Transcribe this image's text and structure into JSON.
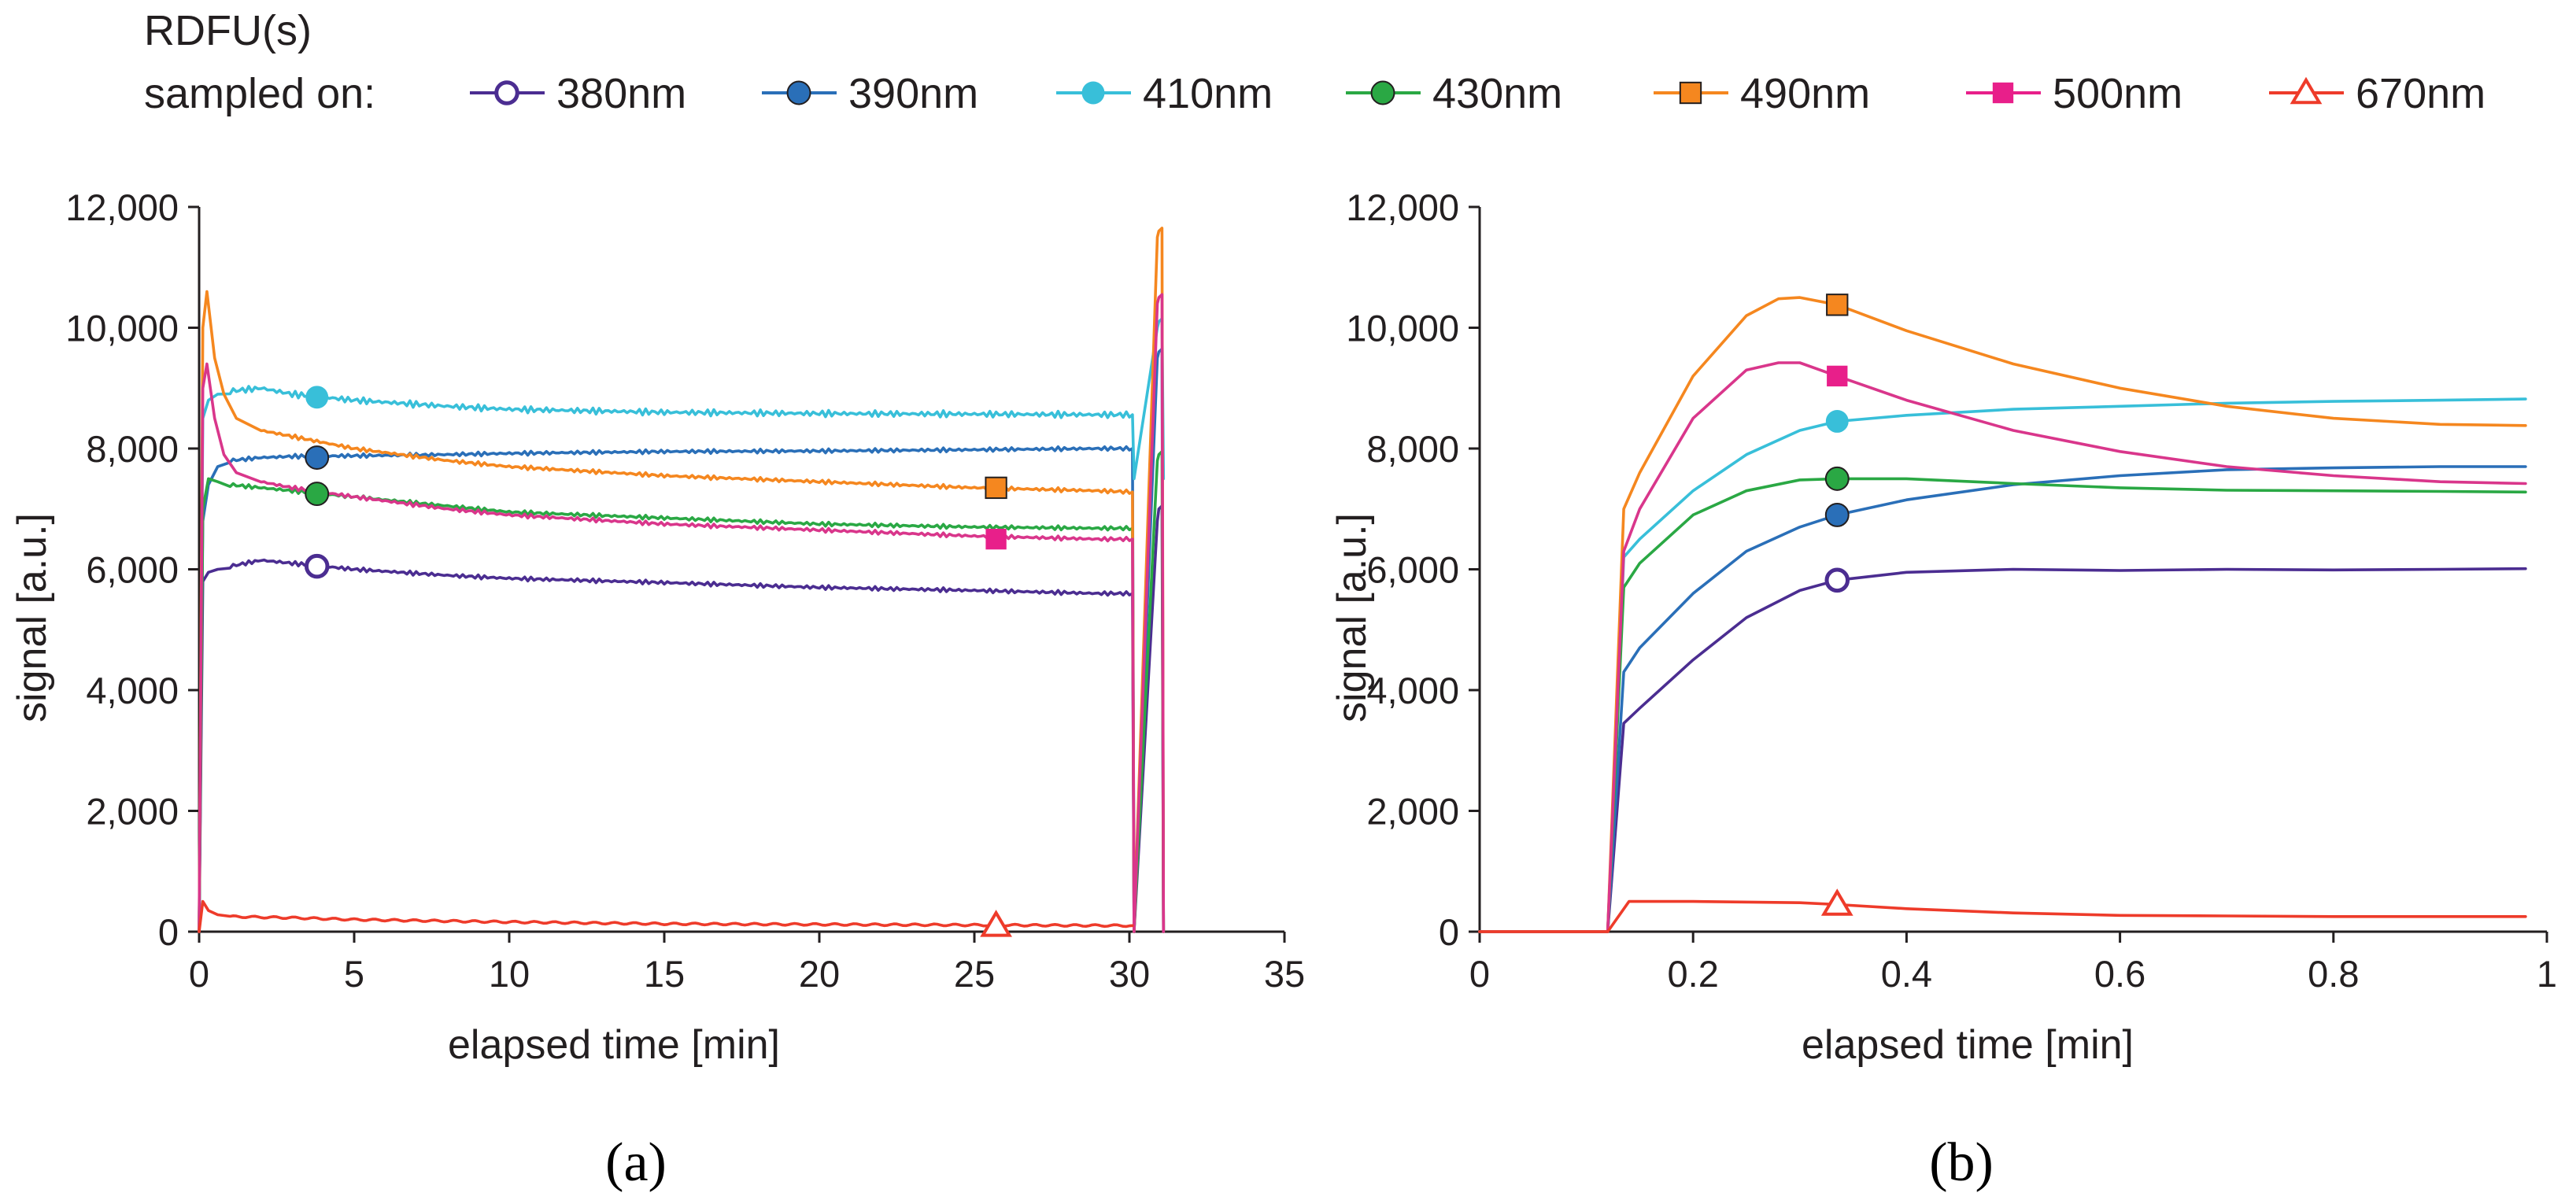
{
  "colors": {
    "380nm": "#4b2d91",
    "390nm": "#2a6fb8",
    "410nm": "#38bfd9",
    "430nm": "#2aa844",
    "490nm": "#f5871f",
    "500nm": "#d9368b",
    "670nm": "#ee3b2a"
  },
  "legend": {
    "title": "RDFU(s)",
    "prefix": "sampled on:",
    "entries": [
      {
        "label": "380nm",
        "color": "#4b2d91",
        "marker": "circle-open"
      },
      {
        "label": "390nm",
        "color": "#2a6fb8",
        "marker": "circle-filled"
      },
      {
        "label": "410nm",
        "color": "#38bfd9",
        "marker": "circle-filled"
      },
      {
        "label": "430nm",
        "color": "#2aa844",
        "marker": "circle-filled"
      },
      {
        "label": "490nm",
        "color": "#f5871f",
        "marker": "square-filled"
      },
      {
        "label": "500nm",
        "color": "#e81f8a",
        "marker": "square-filled"
      },
      {
        "label": "670nm",
        "color": "#ee3b2a",
        "marker": "triangle-open"
      }
    ]
  },
  "chart_data": [
    {
      "type": "line",
      "panel_label": "(a)",
      "xlabel": "elapsed time [min]",
      "ylabel": "signal [a.u.]",
      "xlim": [
        0,
        35
      ],
      "ylim": [
        0,
        12000
      ],
      "xticks": [
        0,
        5,
        10,
        15,
        20,
        25,
        30,
        35
      ],
      "xtick_labels": [
        "0",
        "5",
        "10",
        "15",
        "20",
        "25",
        "30",
        "35"
      ],
      "yticks": [
        0,
        2000,
        4000,
        6000,
        8000,
        10000,
        12000
      ],
      "ytick_labels": [
        "0",
        "2,000",
        "4,000",
        "6,000",
        "8,000",
        "10,000",
        "12,000"
      ],
      "series": [
        {
          "name": "380nm",
          "marker_x": 3.8,
          "marker_y": 6050,
          "x": [
            0,
            0.12,
            0.3,
            0.6,
            1,
            2,
            3,
            5,
            8,
            10,
            15,
            20,
            25,
            29,
            30.1,
            30.15,
            30.9,
            30.95,
            31.05,
            31.1
          ],
          "y": [
            0,
            5800,
            5950,
            6000,
            6050,
            6150,
            6100,
            6000,
            5900,
            5850,
            5780,
            5700,
            5650,
            5600,
            5600,
            0,
            6800,
            7000,
            7050,
            0
          ]
        },
        {
          "name": "390nm",
          "marker_x": 3.8,
          "marker_y": 7850,
          "x": [
            0,
            0.12,
            0.3,
            0.6,
            1,
            2,
            3,
            5,
            8,
            10,
            15,
            20,
            25,
            29,
            30.1,
            30.15,
            30.9,
            30.95,
            31.05,
            31.1
          ],
          "y": [
            0,
            6800,
            7400,
            7700,
            7800,
            7850,
            7870,
            7880,
            7900,
            7920,
            7950,
            7960,
            7980,
            8000,
            8000,
            0,
            9500,
            9600,
            9650,
            0
          ]
        },
        {
          "name": "410nm",
          "marker_x": 3.8,
          "marker_y": 8850,
          "x": [
            0,
            0.12,
            0.3,
            0.6,
            1,
            2,
            3,
            5,
            8,
            10,
            15,
            20,
            25,
            29,
            30.1,
            30.15,
            30.9,
            30.95,
            31.05,
            31.1
          ],
          "y": [
            0,
            8500,
            8800,
            8900,
            8950,
            9000,
            8900,
            8800,
            8700,
            8650,
            8600,
            8580,
            8570,
            8560,
            8560,
            7500,
            10000,
            10100,
            10150,
            7500
          ]
        },
        {
          "name": "430nm",
          "marker_x": 3.8,
          "marker_y": 7250,
          "x": [
            0,
            0.12,
            0.3,
            0.6,
            1,
            2,
            3,
            5,
            8,
            10,
            15,
            20,
            25,
            29,
            30.1,
            30.15,
            30.9,
            30.95,
            31.05,
            31.1
          ],
          "y": [
            0,
            7000,
            7500,
            7450,
            7400,
            7350,
            7300,
            7200,
            7050,
            6950,
            6850,
            6750,
            6700,
            6680,
            6680,
            0,
            7800,
            7900,
            7950,
            0
          ]
        },
        {
          "name": "490nm",
          "marker_x": 25.7,
          "marker_y": 7350,
          "x": [
            0,
            0.12,
            0.25,
            0.5,
            0.8,
            1.2,
            2,
            3,
            5,
            8,
            10,
            15,
            20,
            25,
            29,
            30.1,
            30.15,
            30.9,
            30.95,
            31.05,
            31.1
          ],
          "y": [
            0,
            10000,
            10600,
            9500,
            8900,
            8500,
            8300,
            8200,
            8000,
            7800,
            7700,
            7550,
            7450,
            7350,
            7300,
            7280,
            0,
            11500,
            11600,
            11650,
            0
          ]
        },
        {
          "name": "500nm",
          "marker_x": 25.7,
          "marker_y": 6500,
          "x": [
            0,
            0.12,
            0.25,
            0.5,
            0.8,
            1.2,
            2,
            3,
            5,
            8,
            10,
            15,
            20,
            25,
            29,
            30.1,
            30.15,
            30.9,
            30.95,
            31.05,
            31.1
          ],
          "y": [
            0,
            9000,
            9400,
            8500,
            7900,
            7600,
            7450,
            7350,
            7200,
            7000,
            6900,
            6750,
            6650,
            6550,
            6500,
            6500,
            0,
            10400,
            10500,
            10550,
            0
          ]
        },
        {
          "name": "670nm",
          "marker_x": 25.7,
          "marker_y": 100,
          "x": [
            0,
            0.12,
            0.3,
            0.6,
            1,
            3,
            5,
            10,
            15,
            20,
            25,
            30.1
          ],
          "y": [
            0,
            500,
            350,
            280,
            250,
            230,
            200,
            160,
            130,
            120,
            110,
            100
          ]
        }
      ]
    },
    {
      "type": "line",
      "panel_label": "(b)",
      "xlabel": "elapsed time [min]",
      "ylabel": "signal [a.u.]",
      "xlim": [
        0,
        1
      ],
      "ylim": [
        0,
        12000
      ],
      "xticks": [
        0,
        0.2,
        0.4,
        0.6,
        0.8,
        1
      ],
      "xtick_labels": [
        "0",
        "0.2",
        "0.4",
        "0.6",
        "0.8",
        "1"
      ],
      "yticks": [
        0,
        2000,
        4000,
        6000,
        8000,
        10000,
        12000
      ],
      "ytick_labels": [
        "0",
        "2,000",
        "4,000",
        "6,000",
        "8,000",
        "10,000",
        "12,000"
      ],
      "series": [
        {
          "name": "380nm",
          "marker_x": 0.335,
          "marker_y": 5820,
          "x": [
            0,
            0.12,
            0.135,
            0.15,
            0.2,
            0.25,
            0.3,
            0.335,
            0.4,
            0.5,
            0.6,
            0.7,
            0.8,
            0.9,
            0.98
          ],
          "y": [
            0,
            0,
            3450,
            3700,
            4500,
            5200,
            5650,
            5820,
            5950,
            6000,
            5980,
            6000,
            5990,
            6000,
            6010
          ]
        },
        {
          "name": "390nm",
          "marker_x": 0.335,
          "marker_y": 6900,
          "x": [
            0,
            0.12,
            0.135,
            0.15,
            0.2,
            0.25,
            0.3,
            0.335,
            0.4,
            0.5,
            0.6,
            0.7,
            0.8,
            0.9,
            0.98
          ],
          "y": [
            0,
            0,
            4300,
            4700,
            5600,
            6300,
            6700,
            6900,
            7150,
            7400,
            7550,
            7650,
            7680,
            7700,
            7700
          ]
        },
        {
          "name": "410nm",
          "marker_x": 0.335,
          "marker_y": 8450,
          "x": [
            0,
            0.12,
            0.135,
            0.15,
            0.2,
            0.25,
            0.3,
            0.335,
            0.4,
            0.5,
            0.6,
            0.7,
            0.8,
            0.9,
            0.98
          ],
          "y": [
            0,
            0,
            6200,
            6500,
            7300,
            7900,
            8300,
            8450,
            8550,
            8650,
            8700,
            8750,
            8780,
            8800,
            8820
          ]
        },
        {
          "name": "430nm",
          "marker_x": 0.335,
          "marker_y": 7500,
          "x": [
            0,
            0.12,
            0.135,
            0.15,
            0.2,
            0.25,
            0.3,
            0.335,
            0.4,
            0.5,
            0.6,
            0.7,
            0.8,
            0.9,
            0.98
          ],
          "y": [
            0,
            0,
            5700,
            6100,
            6900,
            7300,
            7480,
            7500,
            7500,
            7420,
            7350,
            7310,
            7300,
            7290,
            7280
          ]
        },
        {
          "name": "490nm",
          "marker_x": 0.335,
          "marker_y": 10380,
          "x": [
            0,
            0.12,
            0.135,
            0.15,
            0.2,
            0.25,
            0.28,
            0.3,
            0.335,
            0.4,
            0.5,
            0.6,
            0.7,
            0.8,
            0.9,
            0.98
          ],
          "y": [
            0,
            0,
            7000,
            7600,
            9200,
            10200,
            10480,
            10500,
            10380,
            9950,
            9400,
            9000,
            8700,
            8500,
            8400,
            8380
          ]
        },
        {
          "name": "500nm",
          "marker_x": 0.335,
          "marker_y": 9200,
          "x": [
            0,
            0.12,
            0.135,
            0.15,
            0.2,
            0.25,
            0.28,
            0.3,
            0.335,
            0.4,
            0.5,
            0.6,
            0.7,
            0.8,
            0.9,
            0.98
          ],
          "y": [
            0,
            0,
            6300,
            7000,
            8500,
            9300,
            9420,
            9420,
            9200,
            8800,
            8300,
            7950,
            7700,
            7550,
            7450,
            7420
          ]
        },
        {
          "name": "670nm",
          "marker_x": 0.335,
          "marker_y": 450,
          "x": [
            0,
            0.12,
            0.14,
            0.2,
            0.3,
            0.335,
            0.4,
            0.5,
            0.6,
            0.7,
            0.8,
            0.9,
            0.98
          ],
          "y": [
            0,
            0,
            500,
            500,
            480,
            450,
            380,
            310,
            270,
            260,
            250,
            250,
            250
          ]
        }
      ]
    }
  ]
}
